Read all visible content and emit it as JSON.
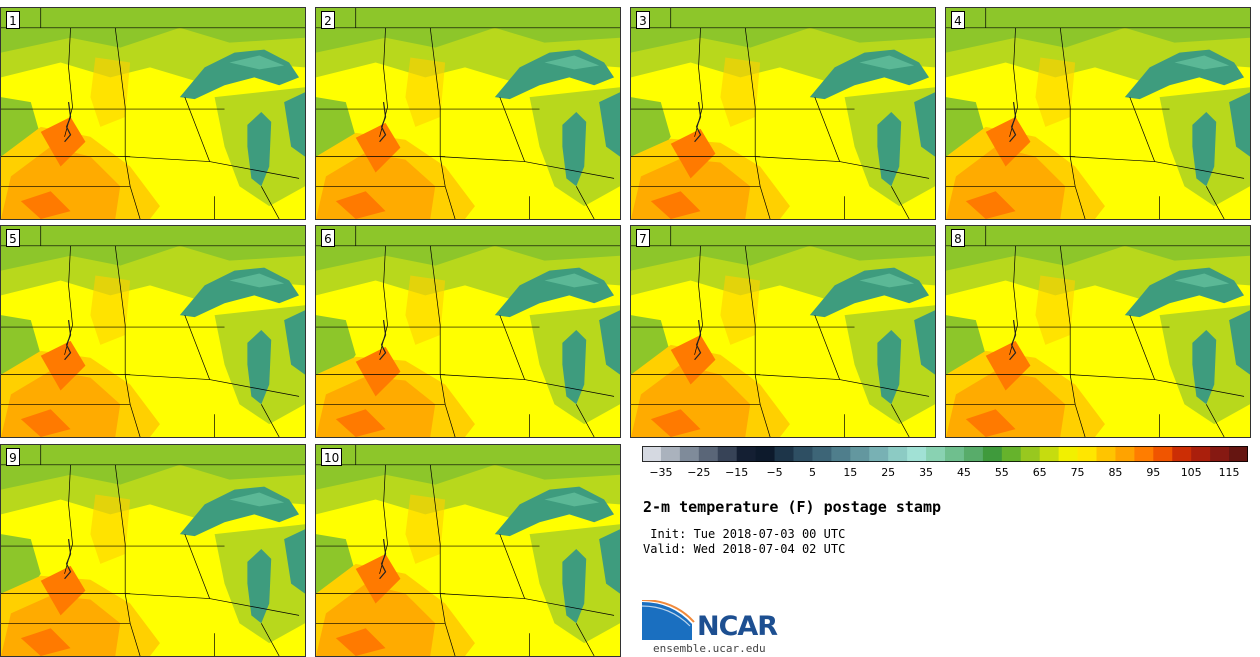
{
  "panels": [
    {
      "label": "1"
    },
    {
      "label": "2"
    },
    {
      "label": "3"
    },
    {
      "label": "4"
    },
    {
      "label": "5"
    },
    {
      "label": "6"
    },
    {
      "label": "7"
    },
    {
      "label": "8"
    },
    {
      "label": "9"
    },
    {
      "label": "10"
    }
  ],
  "colorbar": {
    "colors": [
      "#d5d9e1",
      "#aab2bd",
      "#7f8b9a",
      "#5a6678",
      "#374357",
      "#141f33",
      "#0d1a2c",
      "#1d3549",
      "#2e4f63",
      "#3d6577",
      "#4f7e8c",
      "#63979f",
      "#78b1b4",
      "#8ccbc4",
      "#a1e1d5",
      "#89d2b2",
      "#6fbf8e",
      "#58ac6a",
      "#3f9a3c",
      "#66b32c",
      "#98c81f",
      "#c6dc0f",
      "#f2f000",
      "#ffe600",
      "#ffc400",
      "#ffa300",
      "#ff7d00",
      "#f05500",
      "#cc2e05",
      "#aa1f0c",
      "#861912",
      "#651511"
    ],
    "tick_labels": [
      "−35",
      "−25",
      "−15",
      "−5",
      "5",
      "15",
      "25",
      "35",
      "45",
      "55",
      "65",
      "75",
      "85",
      "95",
      "105",
      "115"
    ],
    "range": [
      -40,
      120
    ],
    "step": 5
  },
  "title": "2-m temperature (F) postage stamp",
  "init_text": " Init: Tue 2018-07-03 00 UTC",
  "valid_text": "Valid: Wed 2018-07-04 02 UTC",
  "logo": {
    "name": "NCAR",
    "url": "ensemble.ucar.edu"
  },
  "map_colors": {
    "lake": "#3e9c7e",
    "lake_light": "#5bb896",
    "cool_green": "#8dc62a",
    "mid_green": "#b8d81c",
    "yellow": "#ffff00",
    "yellow_orange": "#ffd000",
    "orange": "#ffab00",
    "deep_orange": "#ff7a00",
    "border": "#000000"
  }
}
